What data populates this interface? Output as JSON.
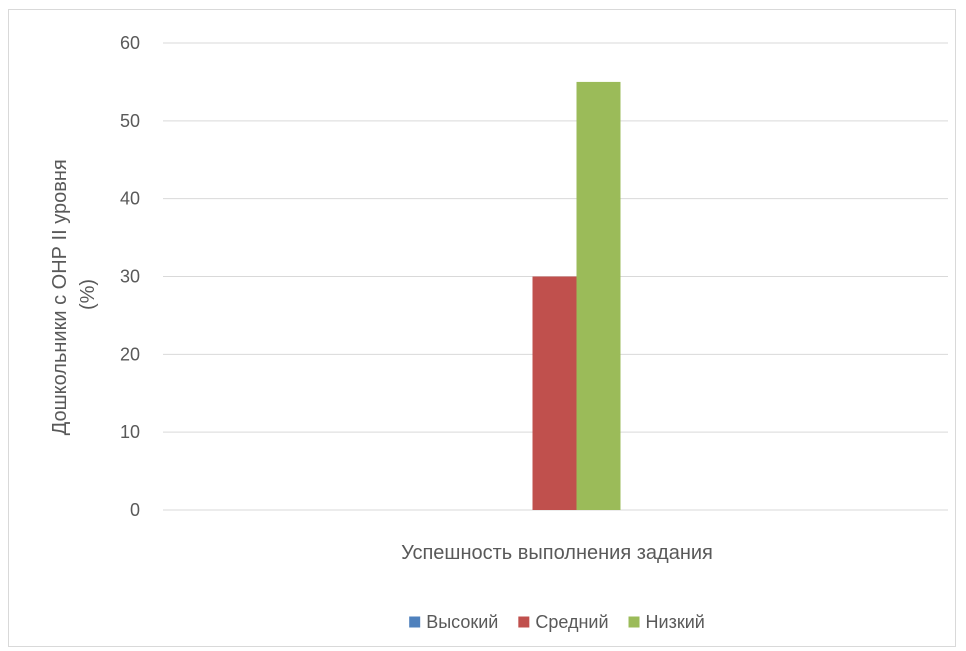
{
  "chart_data": {
    "type": "bar",
    "categories": [
      ""
    ],
    "series": [
      {
        "name": "Высокий",
        "values": [
          0
        ],
        "color": "#4f81bd"
      },
      {
        "name": "Средний",
        "values": [
          30
        ],
        "color": "#c0504d"
      },
      {
        "name": "Низкий",
        "values": [
          55
        ],
        "color": "#9bbb59"
      }
    ],
    "xlabel": "Успешность выполнения задания",
    "ylabel_lines": [
      "Дошкольники с ОНР II уровня",
      "(%)"
    ],
    "ylim": [
      0,
      60
    ],
    "yticks": [
      0,
      10,
      20,
      30,
      40,
      50,
      60
    ],
    "grid": true,
    "legend_position": "bottom",
    "gridline_color": "#d9d9d9",
    "text_color": "#595959"
  }
}
